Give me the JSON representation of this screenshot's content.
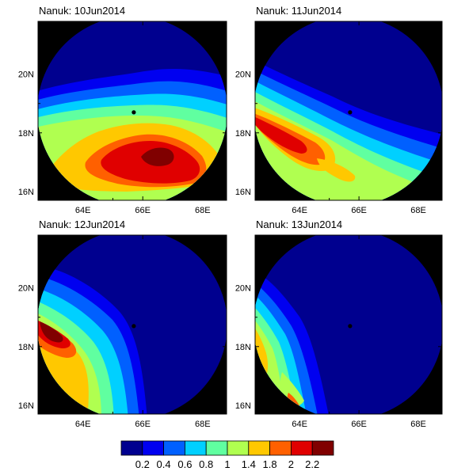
{
  "chart_data": {
    "type": "heatmap",
    "colorbar": {
      "labels": [
        "0.2",
        "0.4",
        "0.6",
        "0.8",
        "1",
        "1.4",
        "1.8",
        "2",
        "2.2"
      ],
      "colors": [
        "#00008f",
        "#0000f0",
        "#0060ff",
        "#00d0ff",
        "#60ffa0",
        "#b0ff50",
        "#ffc800",
        "#ff6000",
        "#e00000",
        "#800000"
      ]
    },
    "axes": {
      "xticks": [
        "64E",
        "66E",
        "68E"
      ],
      "yticks": [
        "20N",
        "18N",
        "16N"
      ],
      "xrange": [
        62.5,
        68.8
      ],
      "yrange": [
        15.7,
        21.8
      ]
    },
    "center_marker": {
      "lon": 65.7,
      "lat": 18.7
    },
    "panels": [
      {
        "title": "Nanuk: 10Jun2014"
      },
      {
        "title": "Nanuk: 11Jun2014"
      },
      {
        "title": "Nanuk: 12Jun2014"
      },
      {
        "title": "Nanuk: 13Jun2014"
      }
    ]
  }
}
